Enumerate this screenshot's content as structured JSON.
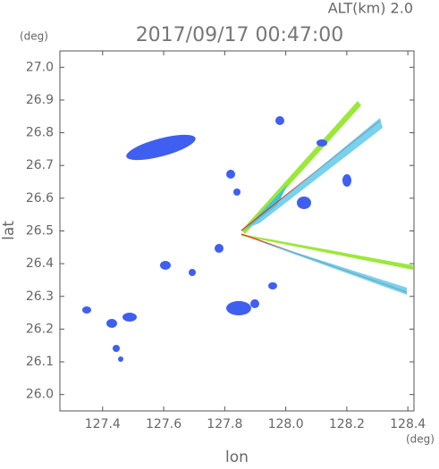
{
  "chart_data": {
    "type": "map",
    "title": "2017/09/17 00:47:00",
    "subtitle": "ALT(km) 2.0",
    "ylabel": "lat",
    "xlabel": "lon",
    "yunit": "(deg)",
    "xunit": "(deg)",
    "xlim": [
      127.26,
      128.42
    ],
    "ylim": [
      25.95,
      27.05
    ],
    "xticks": [
      127.4,
      127.6,
      127.8,
      {
        "value": 128.0,
        "label": "128.0"
      },
      128.2,
      128.4
    ],
    "yticks": [
      {
        "value": 26.0,
        "label": "26.0"
      },
      26.1,
      26.2,
      26.3,
      26.4,
      26.5,
      26.6,
      26.7,
      26.8,
      26.9,
      {
        "value": 27.0,
        "label": "27.0"
      }
    ],
    "grid": false
  }
}
